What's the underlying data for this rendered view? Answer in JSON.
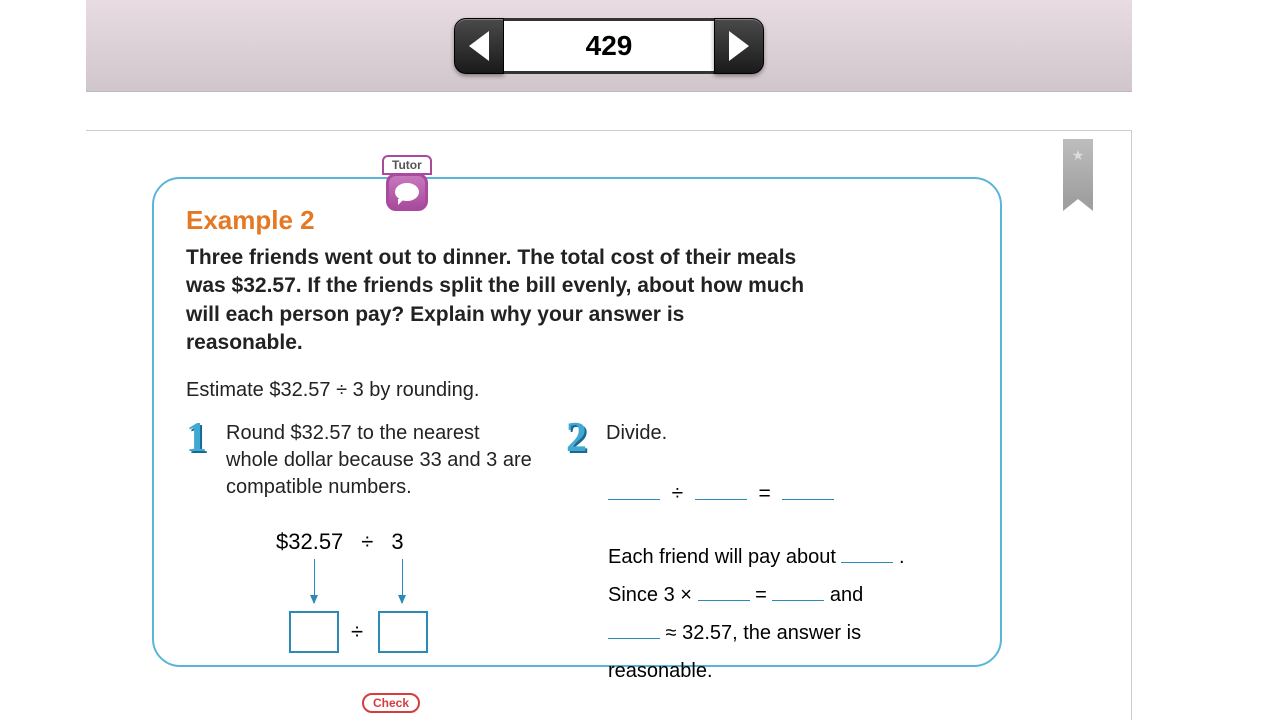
{
  "nav": {
    "page_number": "429"
  },
  "tutor_label": "Tutor",
  "example": {
    "title": "Example 2",
    "problem": "Three friends went out to dinner. The total cost of their meals was $32.57. If the friends split the bill evenly, about how much will each person pay? Explain why your answer is reasonable.",
    "estimate": "Estimate $32.57 ÷ 3 by rounding.",
    "step1_text": "Round $32.57 to the nearest whole dollar because 33 and 3 are compatible numbers.",
    "step2_text": "Divide.",
    "div_left": "$32.57",
    "div_op": "÷",
    "div_right": "3",
    "result_line1": "Each friend will pay about ",
    "result_line2a": "Since 3 × ",
    "result_line2b": " = ",
    "result_line2c": " and",
    "result_line3a": " ≈ 32.57, the answer is",
    "result_line4": "reasonable."
  },
  "check_label": "Check",
  "colors": {
    "accent_orange": "#e57822",
    "accent_blue": "#5bb5d8",
    "accent_purple": "#a84b9e",
    "accent_red": "#d63c3c"
  }
}
